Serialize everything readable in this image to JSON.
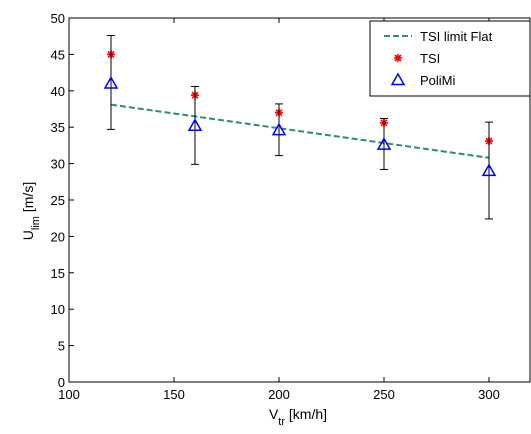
{
  "chart_data": {
    "type": "scatter",
    "xlabel": {
      "main": "V",
      "sub": "tr",
      "unit": " [km/h]"
    },
    "ylabel": {
      "main": "U",
      "sub": "lim",
      "unit": " [m/s]"
    },
    "xlim": [
      100,
      320
    ],
    "ylim": [
      0,
      50
    ],
    "x_ticks": [
      100,
      150,
      200,
      250,
      300
    ],
    "y_ticks": [
      0,
      5,
      10,
      15,
      20,
      25,
      30,
      35,
      40,
      45,
      50
    ],
    "grid": false,
    "legend_position": "top-right",
    "series": [
      {
        "name": "TSI limit Flat",
        "kind": "line",
        "style": "dashed",
        "color": "#2e8b7a",
        "x": [
          120,
          300
        ],
        "y": [
          38.1,
          30.8
        ]
      },
      {
        "name": "TSI",
        "kind": "scatter",
        "marker": "asterisk",
        "color": "#ff0000",
        "x": [
          120,
          160,
          200,
          250,
          300
        ],
        "y": [
          45.0,
          39.4,
          37.0,
          35.6,
          33.1
        ]
      },
      {
        "name": "PoliMi",
        "kind": "scatter",
        "marker": "triangle",
        "color": "#0000ff",
        "x": [
          120,
          160,
          200,
          250,
          300
        ],
        "y": [
          41.0,
          35.2,
          34.6,
          32.6,
          29.0
        ],
        "error_low": [
          34.7,
          29.9,
          31.1,
          29.2,
          22.4
        ],
        "error_high": [
          47.6,
          40.6,
          38.2,
          36.2,
          35.7
        ]
      }
    ]
  }
}
